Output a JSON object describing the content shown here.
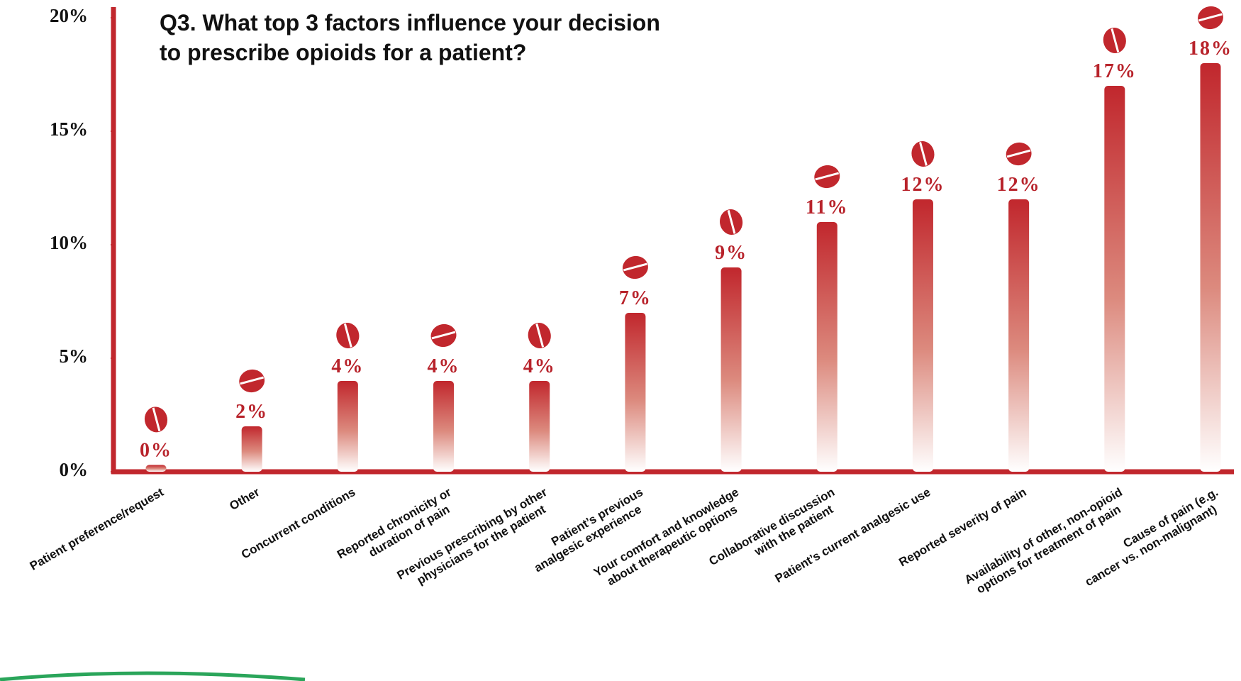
{
  "chart_data": {
    "type": "bar",
    "title": [
      "Q3. What top 3 factors influence your decision",
      "to prescribe opioids for a patient?"
    ],
    "categories": [
      [
        "Patient preference/request"
      ],
      [
        "Other"
      ],
      [
        "Concurrent conditions"
      ],
      [
        "Reported chronicity or",
        "duration of pain"
      ],
      [
        "Previous prescribing by other",
        "physicians for the patient"
      ],
      [
        "Patient’s previous",
        "analgesic experience"
      ],
      [
        "Your comfort and knowledge",
        "about therapeutic options"
      ],
      [
        "Collaborative discussion",
        "with the patient"
      ],
      [
        "Patient’s current analgesic use"
      ],
      [
        "Reported severity of pain"
      ],
      [
        "Availability of other, non-opioid",
        "options for treatment of pain"
      ],
      [
        "Cause of pain (e.g.",
        "cancer vs. non-malignant)"
      ]
    ],
    "values": [
      0.3,
      2,
      4,
      4,
      4,
      7,
      9,
      11,
      12,
      12,
      17,
      18
    ],
    "value_labels": [
      "0%",
      "2%",
      "4%",
      "4%",
      "4%",
      "7%",
      "9%",
      "11%",
      "12%",
      "12%",
      "17%",
      "18%"
    ],
    "color": "#c1272d",
    "ylim": [
      0,
      20
    ],
    "yticks": [
      {
        "value": 0,
        "label": "0%"
      },
      {
        "value": 5,
        "label": "5%"
      },
      {
        "value": 10,
        "label": "10%"
      },
      {
        "value": 15,
        "label": "15%"
      },
      {
        "value": 20,
        "label": "20%"
      }
    ],
    "grid": false
  }
}
